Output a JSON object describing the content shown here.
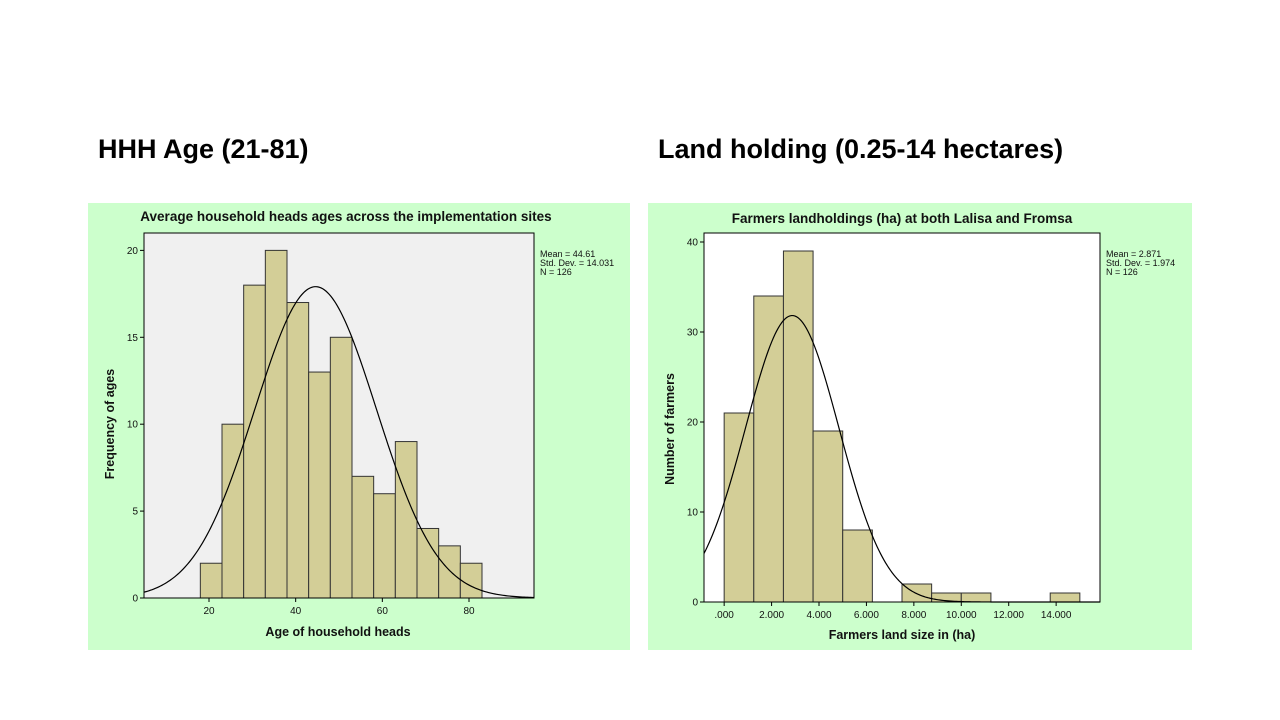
{
  "slide": {
    "left_heading": "HHH Age (21-81)",
    "right_heading": "Land holding (0.25-14 hectares)"
  },
  "colors": {
    "panel_bg": "#ccffcc",
    "bar_fill": "#d3ce97",
    "bar_stroke": "#333333",
    "curve": "#000000"
  },
  "chart_data": [
    {
      "type": "bar",
      "title": "Average household heads ages across the implementation sites",
      "xlabel": "Age of household heads",
      "ylabel": "Frequency of ages",
      "plot_background": "#f0f0f0",
      "xlim": [
        5,
        95
      ],
      "ylim": [
        0,
        21
      ],
      "xticks": [
        20,
        40,
        60,
        80
      ],
      "xtick_labels": [
        "20",
        "40",
        "60",
        "80"
      ],
      "yticks": [
        0,
        5,
        10,
        15,
        20
      ],
      "ytick_labels": [
        "0",
        "5",
        "10",
        "15",
        "20"
      ],
      "bin_edges": [
        18,
        23,
        28,
        33,
        38,
        43,
        48,
        53,
        58,
        63,
        68,
        73,
        78,
        83
      ],
      "values": [
        2,
        10,
        18,
        20,
        17,
        13,
        15,
        7,
        6,
        9,
        4,
        3,
        2
      ],
      "normal_curve": {
        "mean": 44.61,
        "sd": 14.031,
        "n": 126,
        "bin_width": 5
      },
      "stats": [
        "Mean = 44.61",
        "Std. Dev. = 14.031",
        "N = 126"
      ]
    },
    {
      "type": "bar",
      "title": "Farmers landholdings (ha) at both Lalisa and Fromsa",
      "xlabel": "Farmers land size in (ha)",
      "ylabel": "Number of farmers",
      "plot_background": "#ffffff",
      "xlim": [
        -0.85,
        15.85
      ],
      "ylim": [
        0,
        41
      ],
      "xticks": [
        0,
        2,
        4,
        6,
        8,
        10,
        12,
        14
      ],
      "xtick_labels": [
        ".000",
        "2.000",
        "4.000",
        "6.000",
        "8.000",
        "10.000",
        "12.000",
        "14.000"
      ],
      "yticks": [
        0,
        10,
        20,
        30,
        40
      ],
      "ytick_labels": [
        "0",
        "10",
        "20",
        "30",
        "40"
      ],
      "bin_edges": [
        0,
        1.25,
        2.5,
        3.75,
        5,
        6.25,
        7.5,
        8.75,
        10,
        11.25,
        12.5,
        13.75,
        15
      ],
      "values": [
        21,
        34,
        39,
        19,
        8,
        0,
        2,
        1,
        1,
        0,
        0,
        1
      ],
      "normal_curve": {
        "mean": 2.871,
        "sd": 1.974,
        "n": 126,
        "bin_width": 1.25
      },
      "stats": [
        "Mean = 2.871",
        "Std. Dev. = 1.974",
        "N = 126"
      ]
    }
  ]
}
